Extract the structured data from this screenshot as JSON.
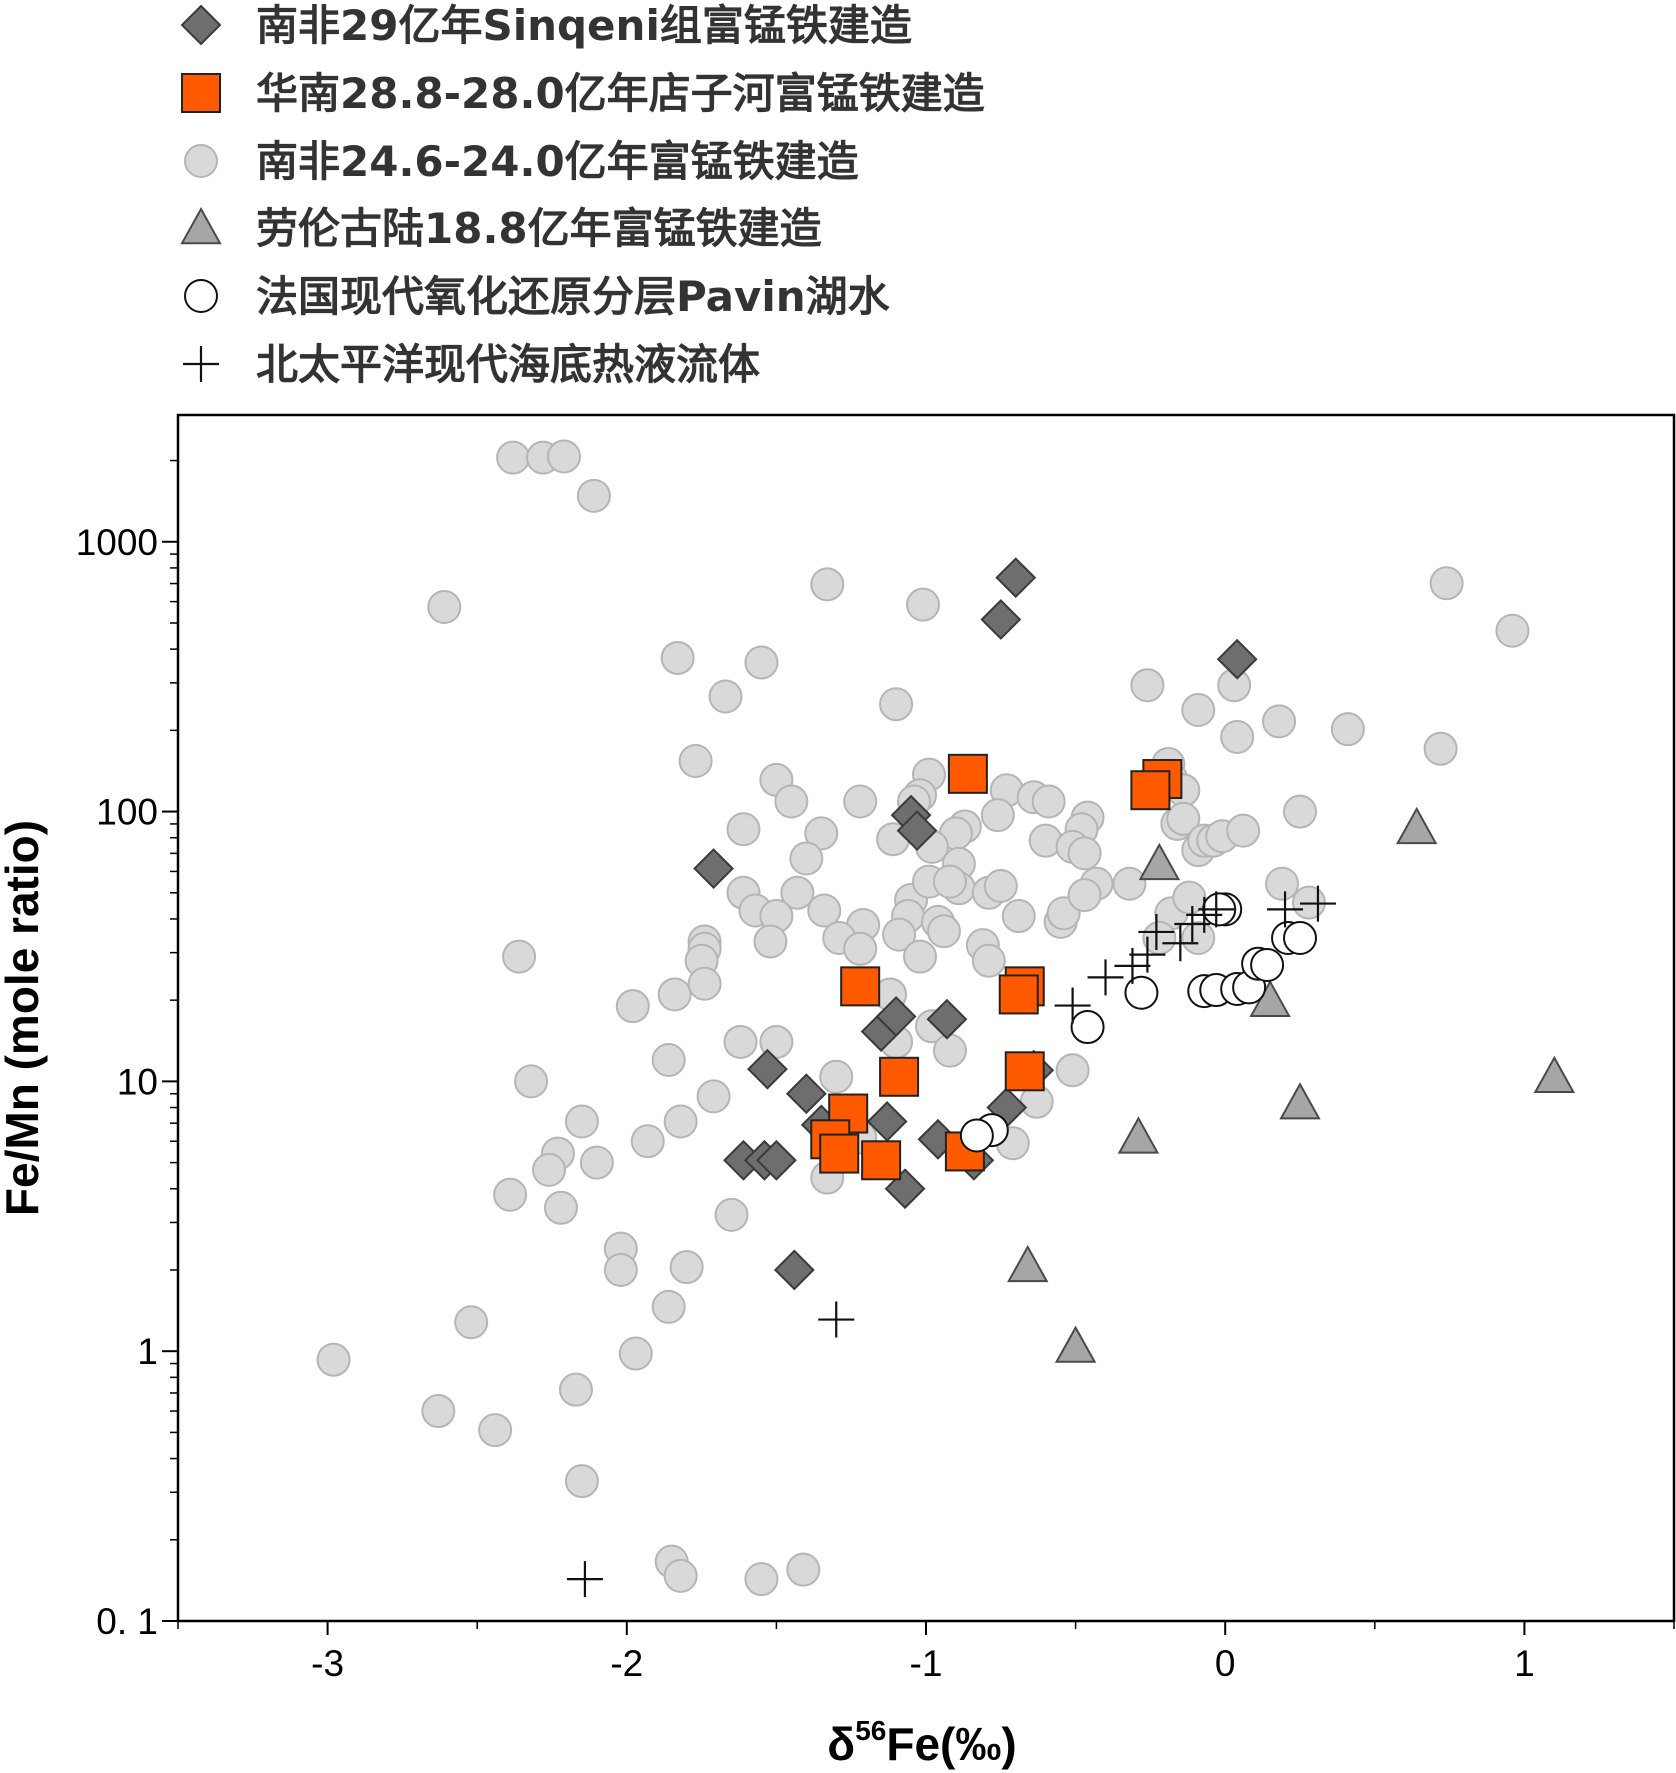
{
  "chart_data": {
    "type": "scatter",
    "xlabel": "δ56Fe(‰)",
    "xlabel_parts": {
      "delta": "δ",
      "superscript": "56",
      "rest": "Fe(‰)"
    },
    "ylabel": "Fe/Mn (mole ratio)",
    "xlim": [
      -3.5,
      1.5
    ],
    "ylim": [
      0.1,
      2950
    ],
    "yscale": "log",
    "x_ticks": [
      -3,
      -2,
      -1,
      0,
      1
    ],
    "x_tick_labels": [
      "-3",
      "-2",
      "-1",
      "0",
      "1"
    ],
    "y_ticks": [
      0.1,
      1,
      10,
      100,
      1000
    ],
    "y_tick_labels": [
      "0. 1",
      "1",
      "10",
      "100",
      "1000"
    ],
    "grid": false,
    "legend_placement": "top (above plot)",
    "series": [
      {
        "name": "南非29亿年Sinqeni组富锰铁建造",
        "marker": "diamond",
        "fill": "#6e6e6e",
        "stroke": "#3a3a3a",
        "points": [
          [
            -0.7,
            736
          ],
          [
            -0.75,
            515
          ],
          [
            0.04,
            367
          ],
          [
            -1.71,
            61.5
          ],
          [
            -1.05,
            97
          ],
          [
            -1.03,
            85
          ],
          [
            -1.53,
            11.1
          ],
          [
            -1.4,
            9.0
          ],
          [
            -1.35,
            6.9
          ],
          [
            -1.13,
            7.1
          ],
          [
            -1.61,
            5.1
          ],
          [
            -1.54,
            5.1
          ],
          [
            -1.5,
            5.1
          ],
          [
            -1.44,
            2.0
          ],
          [
            -1.07,
            4.0
          ],
          [
            -1.15,
            15.3
          ],
          [
            -1.1,
            17.4
          ],
          [
            -0.93,
            17.0
          ],
          [
            -0.96,
            6.1
          ],
          [
            -0.84,
            5.1
          ],
          [
            -0.73,
            8.0
          ],
          [
            -0.64,
            11.0
          ]
        ]
      },
      {
        "name": "华南28.8-28.0亿年店子河富锰铁建造",
        "marker": "square",
        "fill": "#ff5a00",
        "stroke": "#222222",
        "points": [
          [
            -0.86,
            138
          ],
          [
            -0.21,
            132
          ],
          [
            -0.25,
            120
          ],
          [
            -1.22,
            22.5
          ],
          [
            -0.67,
            22.5
          ],
          [
            -0.69,
            21
          ],
          [
            -1.09,
            10.4
          ],
          [
            -0.67,
            10.9
          ],
          [
            -1.26,
            7.6
          ],
          [
            -1.32,
            6.1
          ],
          [
            -1.29,
            5.4
          ],
          [
            -1.15,
            5.1
          ],
          [
            -0.87,
            5.5
          ]
        ]
      },
      {
        "name": "南非24.6-24.0亿年富锰铁建造",
        "marker": "circle",
        "fill": "#d9d9d9",
        "stroke": "#b5b5b5",
        "points": [
          [
            -2.38,
            2050
          ],
          [
            -2.28,
            2050
          ],
          [
            -2.21,
            2070
          ],
          [
            -2.11,
            1480
          ],
          [
            -2.61,
            573
          ],
          [
            -1.33,
            695
          ],
          [
            -1.01,
            585
          ],
          [
            -1.83,
            371
          ],
          [
            -1.55,
            357
          ],
          [
            -1.67,
            267
          ],
          [
            -1.1,
            250
          ],
          [
            -0.26,
            294
          ],
          [
            0.03,
            294
          ],
          [
            -0.09,
            238
          ],
          [
            0.04,
            189
          ],
          [
            0.18,
            216
          ],
          [
            0.41,
            202
          ],
          [
            0.74,
            702
          ],
          [
            0.96,
            468
          ],
          [
            0.72,
            171
          ],
          [
            0.25,
            100
          ],
          [
            -1.77,
            154
          ],
          [
            -1.5,
            131
          ],
          [
            -1.45,
            109
          ],
          [
            -1.22,
            109
          ],
          [
            -1.61,
            86
          ],
          [
            -1.35,
            83
          ],
          [
            -1.4,
            67
          ],
          [
            -0.99,
            137
          ],
          [
            -1.02,
            115
          ],
          [
            -1.04,
            109
          ],
          [
            -0.73,
            120
          ],
          [
            -0.64,
            113
          ],
          [
            -0.59,
            109
          ],
          [
            -0.46,
            95
          ],
          [
            -0.76,
            97
          ],
          [
            -0.87,
            88
          ],
          [
            -0.9,
            83
          ],
          [
            -1.11,
            79
          ],
          [
            -0.98,
            74
          ],
          [
            -0.6,
            78
          ],
          [
            -0.48,
            86
          ],
          [
            -0.51,
            74
          ],
          [
            -0.47,
            70
          ],
          [
            -0.19,
            150
          ],
          [
            -0.18,
            132
          ],
          [
            -0.14,
            120
          ],
          [
            -0.16,
            90
          ],
          [
            -0.14,
            94
          ],
          [
            -0.09,
            72
          ],
          [
            -0.07,
            78
          ],
          [
            -0.04,
            78
          ],
          [
            -0.01,
            81
          ],
          [
            0.06,
            85
          ],
          [
            0.19,
            54
          ],
          [
            0.28,
            46
          ],
          [
            -1.61,
            50
          ],
          [
            -1.43,
            50
          ],
          [
            -1.57,
            43
          ],
          [
            -1.5,
            41
          ],
          [
            -1.34,
            43
          ],
          [
            -1.21,
            38
          ],
          [
            -1.05,
            47
          ],
          [
            -1.06,
            41
          ],
          [
            -0.96,
            39
          ],
          [
            -0.99,
            55
          ],
          [
            -0.89,
            64
          ],
          [
            -0.89,
            52
          ],
          [
            -0.92,
            55
          ],
          [
            -0.79,
            50
          ],
          [
            -0.75,
            53
          ],
          [
            -0.69,
            41
          ],
          [
            -0.55,
            39
          ],
          [
            -0.54,
            42
          ],
          [
            -0.43,
            54
          ],
          [
            -0.47,
            49
          ],
          [
            -0.32,
            54
          ],
          [
            -0.18,
            42
          ],
          [
            -0.12,
            48
          ],
          [
            -0.09,
            34
          ],
          [
            -0.22,
            34
          ],
          [
            -1.74,
            33
          ],
          [
            -1.74,
            31
          ],
          [
            -1.75,
            28
          ],
          [
            -1.52,
            33
          ],
          [
            -1.29,
            34
          ],
          [
            -1.09,
            35
          ],
          [
            -1.22,
            31
          ],
          [
            -1.02,
            29
          ],
          [
            -0.94,
            36
          ],
          [
            -0.81,
            32
          ],
          [
            -0.79,
            28
          ],
          [
            -2.36,
            29
          ],
          [
            -1.84,
            21
          ],
          [
            -1.74,
            23
          ],
          [
            -1.98,
            19
          ],
          [
            -1.62,
            14
          ],
          [
            -1.5,
            14
          ],
          [
            -1.12,
            21
          ],
          [
            -0.98,
            16
          ],
          [
            -1.1,
            14
          ],
          [
            -0.92,
            13
          ],
          [
            -0.51,
            11
          ],
          [
            -1.86,
            12
          ],
          [
            -1.71,
            8.8
          ],
          [
            -1.3,
            10.4
          ],
          [
            -2.32,
            10
          ],
          [
            -2.15,
            7.1
          ],
          [
            -2.23,
            5.4
          ],
          [
            -2.26,
            4.7
          ],
          [
            -2.1,
            5.0
          ],
          [
            -1.93,
            6.0
          ],
          [
            -1.82,
            7.1
          ],
          [
            -2.39,
            3.8
          ],
          [
            -2.22,
            3.4
          ],
          [
            -1.65,
            3.2
          ],
          [
            -0.71,
            5.9
          ],
          [
            -0.63,
            8.4
          ],
          [
            -2.02,
            2.4
          ],
          [
            -2.02,
            2.0
          ],
          [
            -1.8,
            2.05
          ],
          [
            -1.86,
            1.46
          ],
          [
            -2.52,
            1.28
          ],
          [
            -1.97,
            0.98
          ],
          [
            -2.98,
            0.93
          ],
          [
            -2.17,
            0.72
          ],
          [
            -2.63,
            0.6
          ],
          [
            -2.44,
            0.51
          ],
          [
            -2.15,
            0.33
          ],
          [
            -1.85,
            0.166
          ],
          [
            -1.82,
            0.147
          ],
          [
            -1.55,
            0.143
          ],
          [
            -1.41,
            0.155
          ],
          [
            -1.33,
            4.4
          ],
          [
            -1.22,
            6.2
          ]
        ]
      },
      {
        "name": "劳伦古陆18.8亿年富锰铁建造",
        "marker": "triangle",
        "fill": "#a6a6a6",
        "stroke": "#4a4a4a",
        "points": [
          [
            0.64,
            87
          ],
          [
            -0.22,
            64
          ],
          [
            0.15,
            19.9
          ],
          [
            1.1,
            10.4
          ],
          [
            0.25,
            8.3
          ],
          [
            -0.29,
            6.2
          ],
          [
            -0.66,
            2.07
          ],
          [
            -0.5,
            1.04
          ]
        ]
      },
      {
        "name": "法国现代氧化还原分层Pavin湖水",
        "marker": "open-circle",
        "fill": "#ffffff",
        "stroke": "#111111",
        "points": [
          [
            0.0,
            43.4
          ],
          [
            -0.02,
            43.4
          ],
          [
            0.21,
            34
          ],
          [
            0.25,
            34
          ],
          [
            -0.28,
            21.3
          ],
          [
            -0.46,
            15.9
          ],
          [
            -0.07,
            21.6
          ],
          [
            -0.03,
            21.8
          ],
          [
            0.04,
            22
          ],
          [
            0.08,
            22.3
          ],
          [
            0.11,
            27.3
          ],
          [
            0.14,
            27
          ],
          [
            -0.78,
            6.6
          ],
          [
            -0.83,
            6.3
          ]
        ]
      },
      {
        "name": "北太平洋现代海底热液流体",
        "marker": "plus",
        "fill": "none",
        "stroke": "#111111",
        "points": [
          [
            -2.14,
            0.143
          ],
          [
            -1.3,
            1.31
          ],
          [
            -0.51,
            19.1
          ],
          [
            -0.4,
            24.3
          ],
          [
            -0.31,
            26.8
          ],
          [
            -0.26,
            29.5
          ],
          [
            -0.23,
            35.8
          ],
          [
            -0.15,
            32.5
          ],
          [
            -0.11,
            38.3
          ],
          [
            -0.07,
            41.4
          ],
          [
            -0.03,
            43.4
          ],
          [
            0.2,
            43.4
          ],
          [
            0.31,
            45.6
          ]
        ]
      }
    ]
  }
}
